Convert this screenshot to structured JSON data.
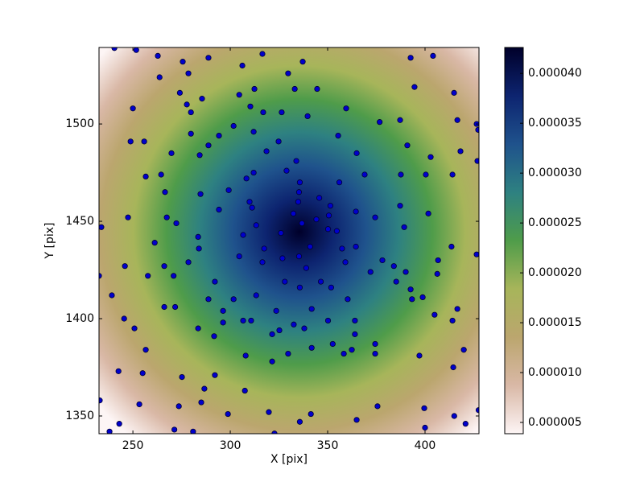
{
  "chart_data": {
    "type": "scatter",
    "x_label": "X [pix]",
    "y_label": "Y [pix]",
    "xlim": [
      232.6,
      427.7
    ],
    "ylim": [
      1340.9,
      1539.3
    ],
    "xticks": [
      250,
      300,
      350,
      400
    ],
    "yticks": [
      1350,
      1400,
      1450,
      1500
    ],
    "color": "#0000cc",
    "colormap": [
      "#fdf5f5",
      "#d9b8a6",
      "#bba66e",
      "#a7b55a",
      "#4f9c4a",
      "#2e8181",
      "#1f528c",
      "#0d2470",
      "#00002a"
    ],
    "colorbar": {
      "lim": [
        3.87e-06,
        4.26e-05
      ],
      "ticks": [
        {
          "value": 5e-06,
          "label": "0.000005"
        },
        {
          "value": 1e-05,
          "label": "0.000010"
        },
        {
          "value": 1.5e-05,
          "label": "0.000015"
        },
        {
          "value": 2e-05,
          "label": "0.000020"
        },
        {
          "value": 2.5e-05,
          "label": "0.000025"
        },
        {
          "value": 3e-05,
          "label": "0.000030"
        },
        {
          "value": 3.5e-05,
          "label": "0.000035"
        },
        {
          "value": 4e-05,
          "label": "0.000040"
        }
      ]
    },
    "x": [
      240.5,
      251.7,
      262.8,
      275.6,
      288.8,
      306.2,
      316.5,
      337.2,
      392.6,
      404.1,
      263.7,
      278.5,
      329.7,
      274.1,
      304.6,
      312.4,
      333.1,
      344.6,
      394.6,
      414.9,
      285.5,
      277.7,
      279.8,
      250,
      310.3,
      316.9,
      326.4,
      339.7,
      359.5,
      301.7,
      294.2,
      279.8,
      255.8,
      248.8,
      288.8,
      324.8,
      312,
      376.7,
      387.2,
      416.6,
      426.5,
      355.4,
      390.9,
      427.3,
      269.8,
      284.3,
      318.6,
      333.9,
      364.9,
      402.9,
      418.2,
      256.6,
      264.5,
      308.3,
      328.9,
      312,
      335.7,
      369,
      387.6,
      400.4,
      414.1,
      426.9,
      266.5,
      299.2,
      284.7,
      335.3,
      345.7,
      356,
      387.2,
      401.7,
      309.9,
      311.2,
      294.2,
      334.9,
      332.4,
      351.4,
      364.5,
      374.4,
      247.5,
      267.4,
      272.3,
      313.3,
      344.2,
      336.8,
      326,
      350.6,
      350.2,
      354.7,
      389.3,
      233.8,
      283.5,
      306.6,
      261.2,
      283.9,
      341,
      357.4,
      364.5,
      413.6,
      304.6,
      317.4,
      316.5,
      326.8,
      335.3,
      359.1,
      378.1,
      406.7,
      426.5,
      245.9,
      266.1,
      278.5,
      257.7,
      270.9,
      339,
      372,
      384,
      390.1,
      406.3,
      232.6,
      292.1,
      328,
      346.5,
      385.2,
      335.7,
      351.8,
      392.6,
      239.2,
      313.3,
      360.3,
      398.8,
      393.3,
      288.8,
      301.7,
      271.7,
      266.1,
      296.3,
      323.6,
      341.8,
      416.6,
      245.5,
      306.6,
      310.7,
      296.3,
      350.2,
      364,
      404.9,
      414.1,
      283.5,
      250.8,
      332.6,
      338,
      325.2,
      321.5,
      291.7,
      364,
      352.6,
      374.4,
      341.8,
      362.4,
      374.4,
      256.6,
      307.9,
      329.7,
      358.3,
      419.9,
      397.1,
      321.5,
      414.5,
      242.6,
      255,
      292.1,
      275.2,
      286.7,
      307.5,
      233,
      285.1,
      253.3,
      375.6,
      273.6,
      427.5,
      399.6,
      298.8,
      319.8,
      341.4,
      415,
      364.9,
      335.7,
      420.8,
      243,
      238,
      271.3,
      280.9,
      400,
      322.7
    ],
    "values": [
      1539,
      1538,
      1535,
      1532,
      1534,
      1530,
      1536,
      1532,
      1534,
      1535,
      1524,
      1526,
      1526,
      1516,
      1515,
      1518,
      1518,
      1518,
      1519,
      1516,
      1513,
      1510,
      1506,
      1508,
      1509,
      1506,
      1506,
      1504,
      1508,
      1499,
      1494,
      1495,
      1491,
      1491,
      1489,
      1491,
      1496,
      1501,
      1502,
      1502,
      1500,
      1494,
      1489,
      1497,
      1485,
      1484,
      1486,
      1481,
      1485,
      1483,
      1486,
      1473,
      1474,
      1472,
      1476,
      1475,
      1470,
      1474,
      1474,
      1474,
      1474,
      1481,
      1465,
      1466,
      1464,
      1465,
      1462,
      1470,
      1458,
      1454,
      1460,
      1457,
      1456,
      1460,
      1454,
      1458,
      1455,
      1452,
      1452,
      1452,
      1449,
      1448,
      1451,
      1449,
      1444,
      1453,
      1446,
      1445,
      1447,
      1447,
      1442,
      1443,
      1439,
      1436,
      1437,
      1436,
      1437,
      1437,
      1432,
      1436,
      1429,
      1431,
      1432,
      1429,
      1430,
      1430,
      1433,
      1427,
      1427,
      1429,
      1422,
      1422,
      1426,
      1424,
      1427,
      1424,
      1423,
      1422,
      1419,
      1419,
      1419,
      1419,
      1416,
      1416,
      1415,
      1412,
      1412,
      1410,
      1411,
      1410,
      1410,
      1410,
      1406,
      1406,
      1404,
      1404,
      1405,
      1405,
      1400,
      1399,
      1399,
      1398,
      1399,
      1399,
      1402,
      1399,
      1395,
      1395,
      1397,
      1395,
      1394,
      1392,
      1391,
      1392,
      1387,
      1387,
      1385,
      1384,
      1382,
      1384,
      1381,
      1382,
      1382,
      1384,
      1381,
      1378,
      1375,
      1373,
      1372,
      1371,
      1370,
      1364,
      1363,
      1358,
      1357,
      1356,
      1355,
      1355,
      1353,
      1354,
      1351,
      1352,
      1351,
      1350,
      1348,
      1347,
      1346,
      1346,
      1342,
      1343,
      1342,
      1344,
      1341
    ]
  }
}
